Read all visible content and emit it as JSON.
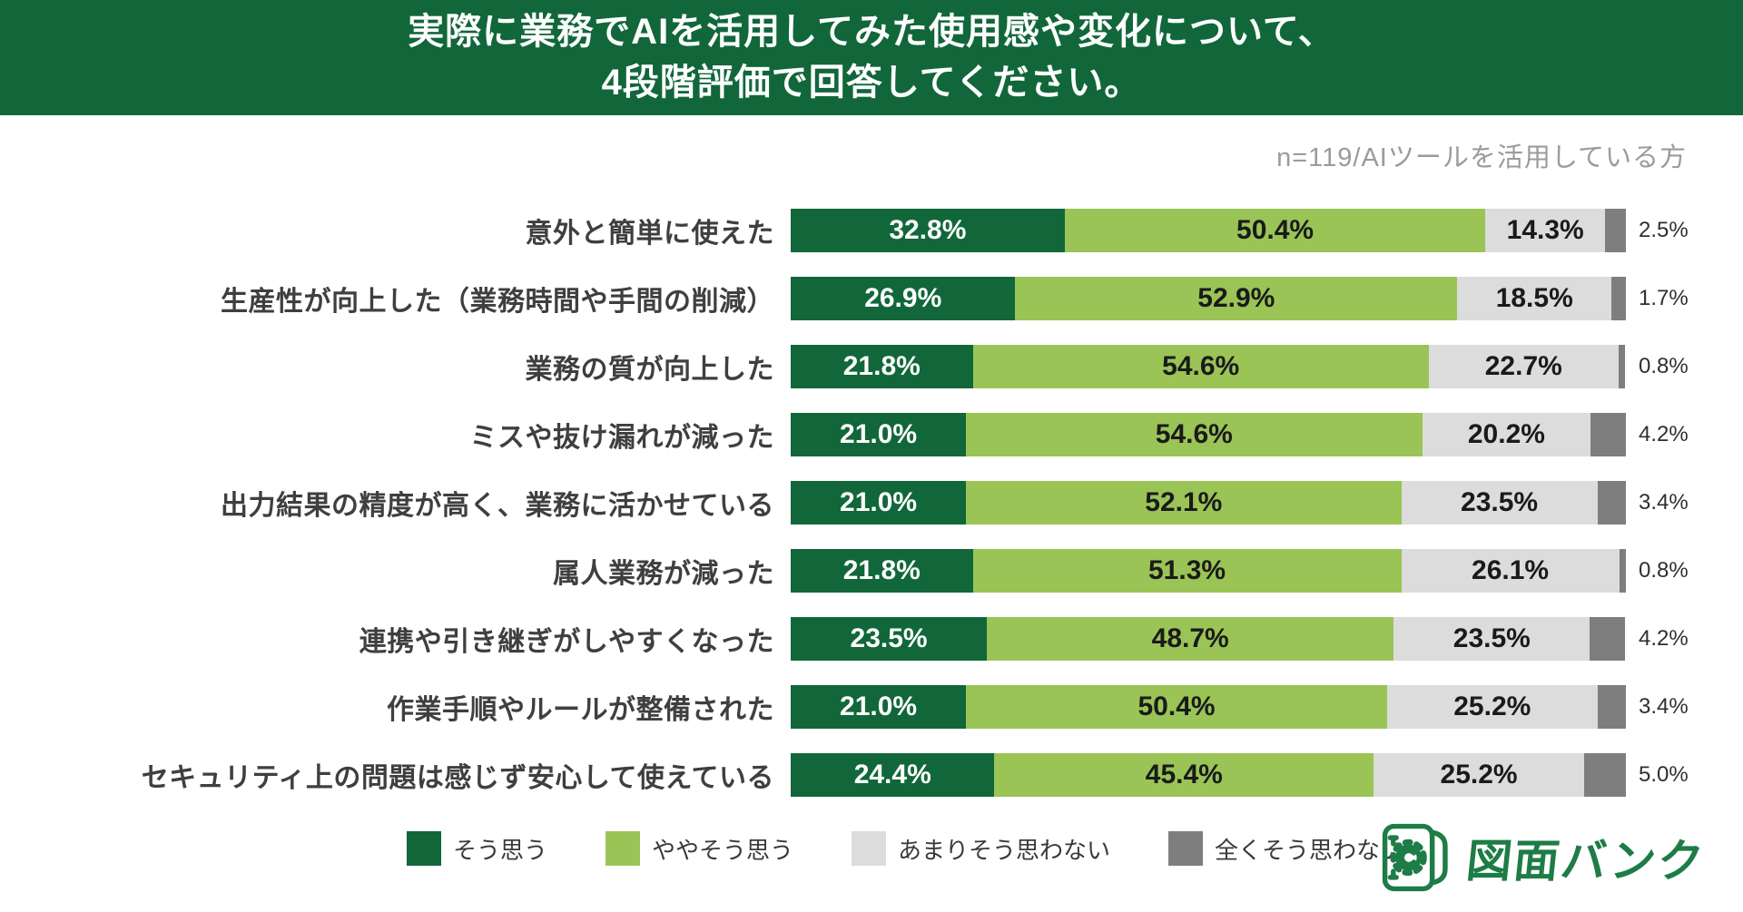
{
  "header": {
    "title_line1": "実際に業務でAIを活用してみた使用感や変化について、",
    "title_line2": "4段階評価で回答してください。",
    "bg_color": "#11673a"
  },
  "note": "n=119/AIツールを活用している方",
  "chart_data": {
    "type": "bar",
    "orientation": "horizontal-stacked",
    "title": "実際に業務でAIを活用してみた使用感や変化について、4段階評価で回答してください。",
    "sample_note": "n=119/AIツールを活用している方",
    "unit": "%",
    "xlim": [
      0,
      100
    ],
    "legend_position": "bottom",
    "categories": [
      "意外と簡単に使えた",
      "生産性が向上した（業務時間や手間の削減）",
      "業務の質が向上した",
      "ミスや抜け漏れが減った",
      "出力結果の精度が高く、業務に活かせている",
      "属人業務が減った",
      "連携や引き継ぎがしやすくなった",
      "作業手順やルールが整備された",
      "セキュリティ上の問題は感じず安心して使えている"
    ],
    "series": [
      {
        "name": "そう思う",
        "color": "#11673a",
        "values": [
          32.8,
          26.9,
          21.8,
          21.0,
          21.0,
          21.8,
          23.5,
          21.0,
          24.4
        ]
      },
      {
        "name": "ややそう思う",
        "color": "#9ac456",
        "values": [
          50.4,
          52.9,
          54.6,
          54.6,
          52.1,
          51.3,
          48.7,
          50.4,
          45.4
        ]
      },
      {
        "name": "あまりそう思わない",
        "color": "#dcdcdc",
        "values": [
          14.3,
          18.5,
          22.7,
          20.2,
          23.5,
          26.1,
          23.5,
          25.2,
          25.2
        ]
      },
      {
        "name": "全くそう思わない",
        "color": "#7e7e7e",
        "values": [
          2.5,
          1.7,
          0.8,
          4.2,
          3.4,
          0.8,
          4.2,
          3.4,
          5.0
        ]
      }
    ]
  },
  "logo": {
    "text": "図面バンク",
    "color": "#1e7c46"
  }
}
